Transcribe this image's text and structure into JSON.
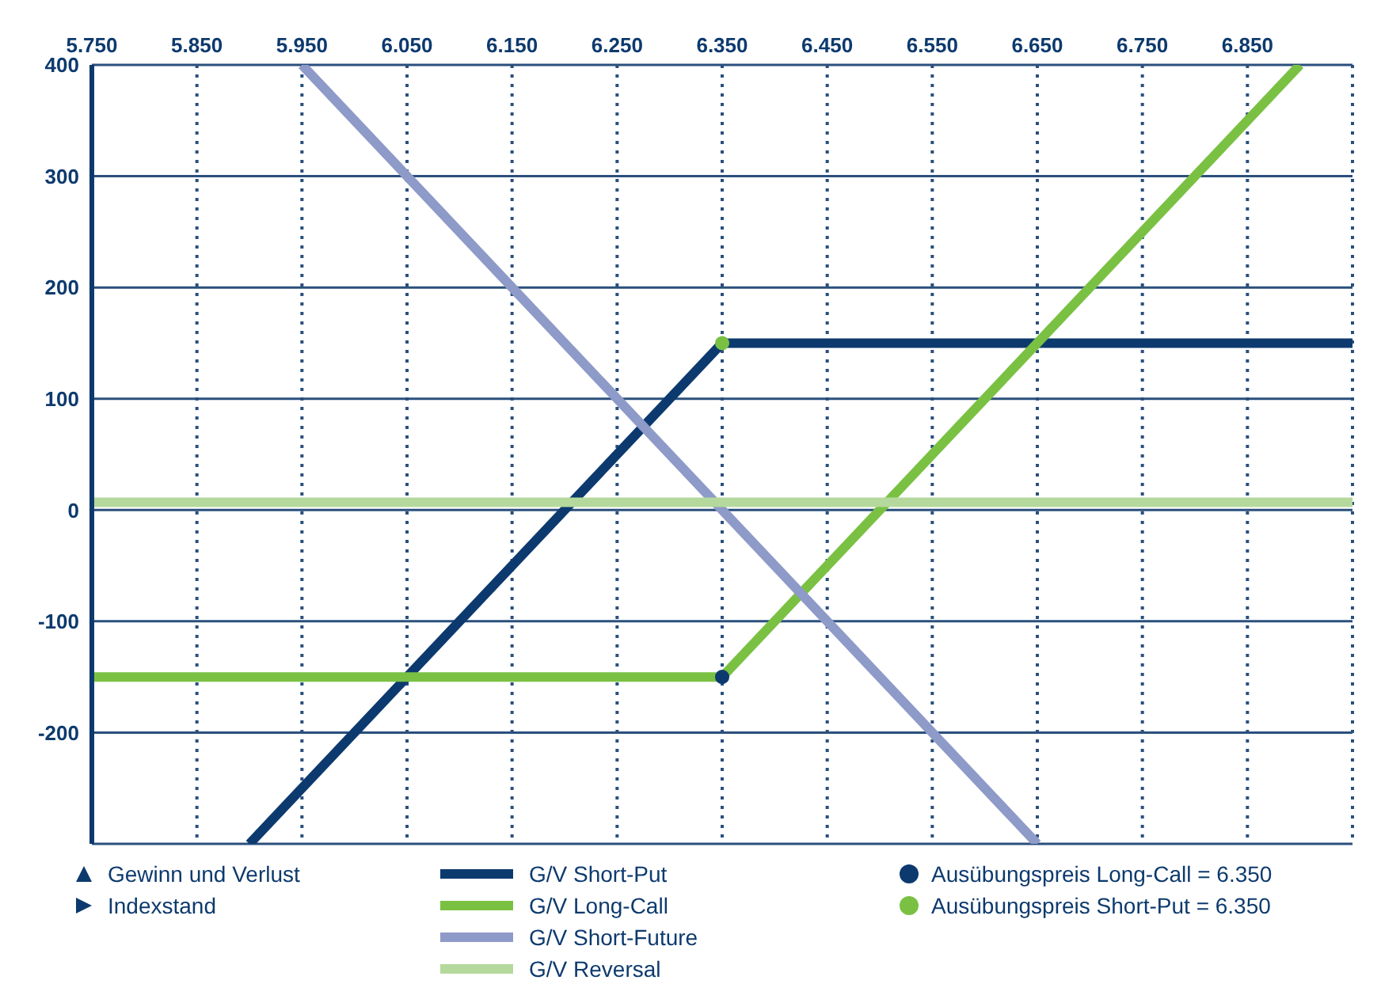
{
  "chart_data": {
    "type": "line",
    "xlim": [
      5.75,
      6.95
    ],
    "ylim": [
      -300,
      400
    ],
    "xticks": [
      {
        "value": 5.75,
        "label": "5.750"
      },
      {
        "value": 5.85,
        "label": "5.850"
      },
      {
        "value": 5.95,
        "label": "5.950"
      },
      {
        "value": 6.05,
        "label": "6.050"
      },
      {
        "value": 6.15,
        "label": "6.150"
      },
      {
        "value": 6.25,
        "label": "6.250"
      },
      {
        "value": 6.35,
        "label": "6.350"
      },
      {
        "value": 6.45,
        "label": "6.450"
      },
      {
        "value": 6.55,
        "label": "6.550"
      },
      {
        "value": 6.65,
        "label": "6.650"
      },
      {
        "value": 6.75,
        "label": "6.750"
      },
      {
        "value": 6.85,
        "label": "6.850"
      }
    ],
    "yticks": [
      -200,
      -100,
      0,
      100,
      200,
      300,
      400
    ],
    "grid": true,
    "legend": "bottom",
    "marker": "none",
    "line_style": "solid",
    "annotations": [
      "Gewinn und Verlust",
      "Indexstand"
    ],
    "series": [
      {
        "name": "G/V Short-Put",
        "color": "#0d3a6e",
        "x": [
          5.9,
          6.35,
          6.95
        ],
        "values": [
          -300,
          150,
          150
        ]
      },
      {
        "name": "G/V Long-Call",
        "color": "#7ac143",
        "x": [
          5.75,
          6.35,
          6.9
        ],
        "values": [
          -150,
          -150,
          400
        ]
      },
      {
        "name": "G/V Short-Future",
        "color": "#8e9ac8",
        "x": [
          5.95,
          6.65
        ],
        "values": [
          400,
          -300
        ]
      },
      {
        "name": "G/V Reversal",
        "color": "#b5d99c",
        "x": [
          5.75,
          6.95
        ],
        "values": [
          7,
          7
        ]
      },
      {
        "name": "Ausübungspreis Long-Call = 6.350",
        "type": "scatter",
        "marker": "circle",
        "color": "#0d3a6e",
        "x": [
          6.35
        ],
        "values": [
          -150
        ]
      },
      {
        "name": "Ausübungspreis Short-Put = 6.350",
        "type": "scatter",
        "marker": "circle",
        "color": "#7ac143",
        "x": [
          6.35
        ],
        "values": [
          150
        ]
      }
    ]
  }
}
